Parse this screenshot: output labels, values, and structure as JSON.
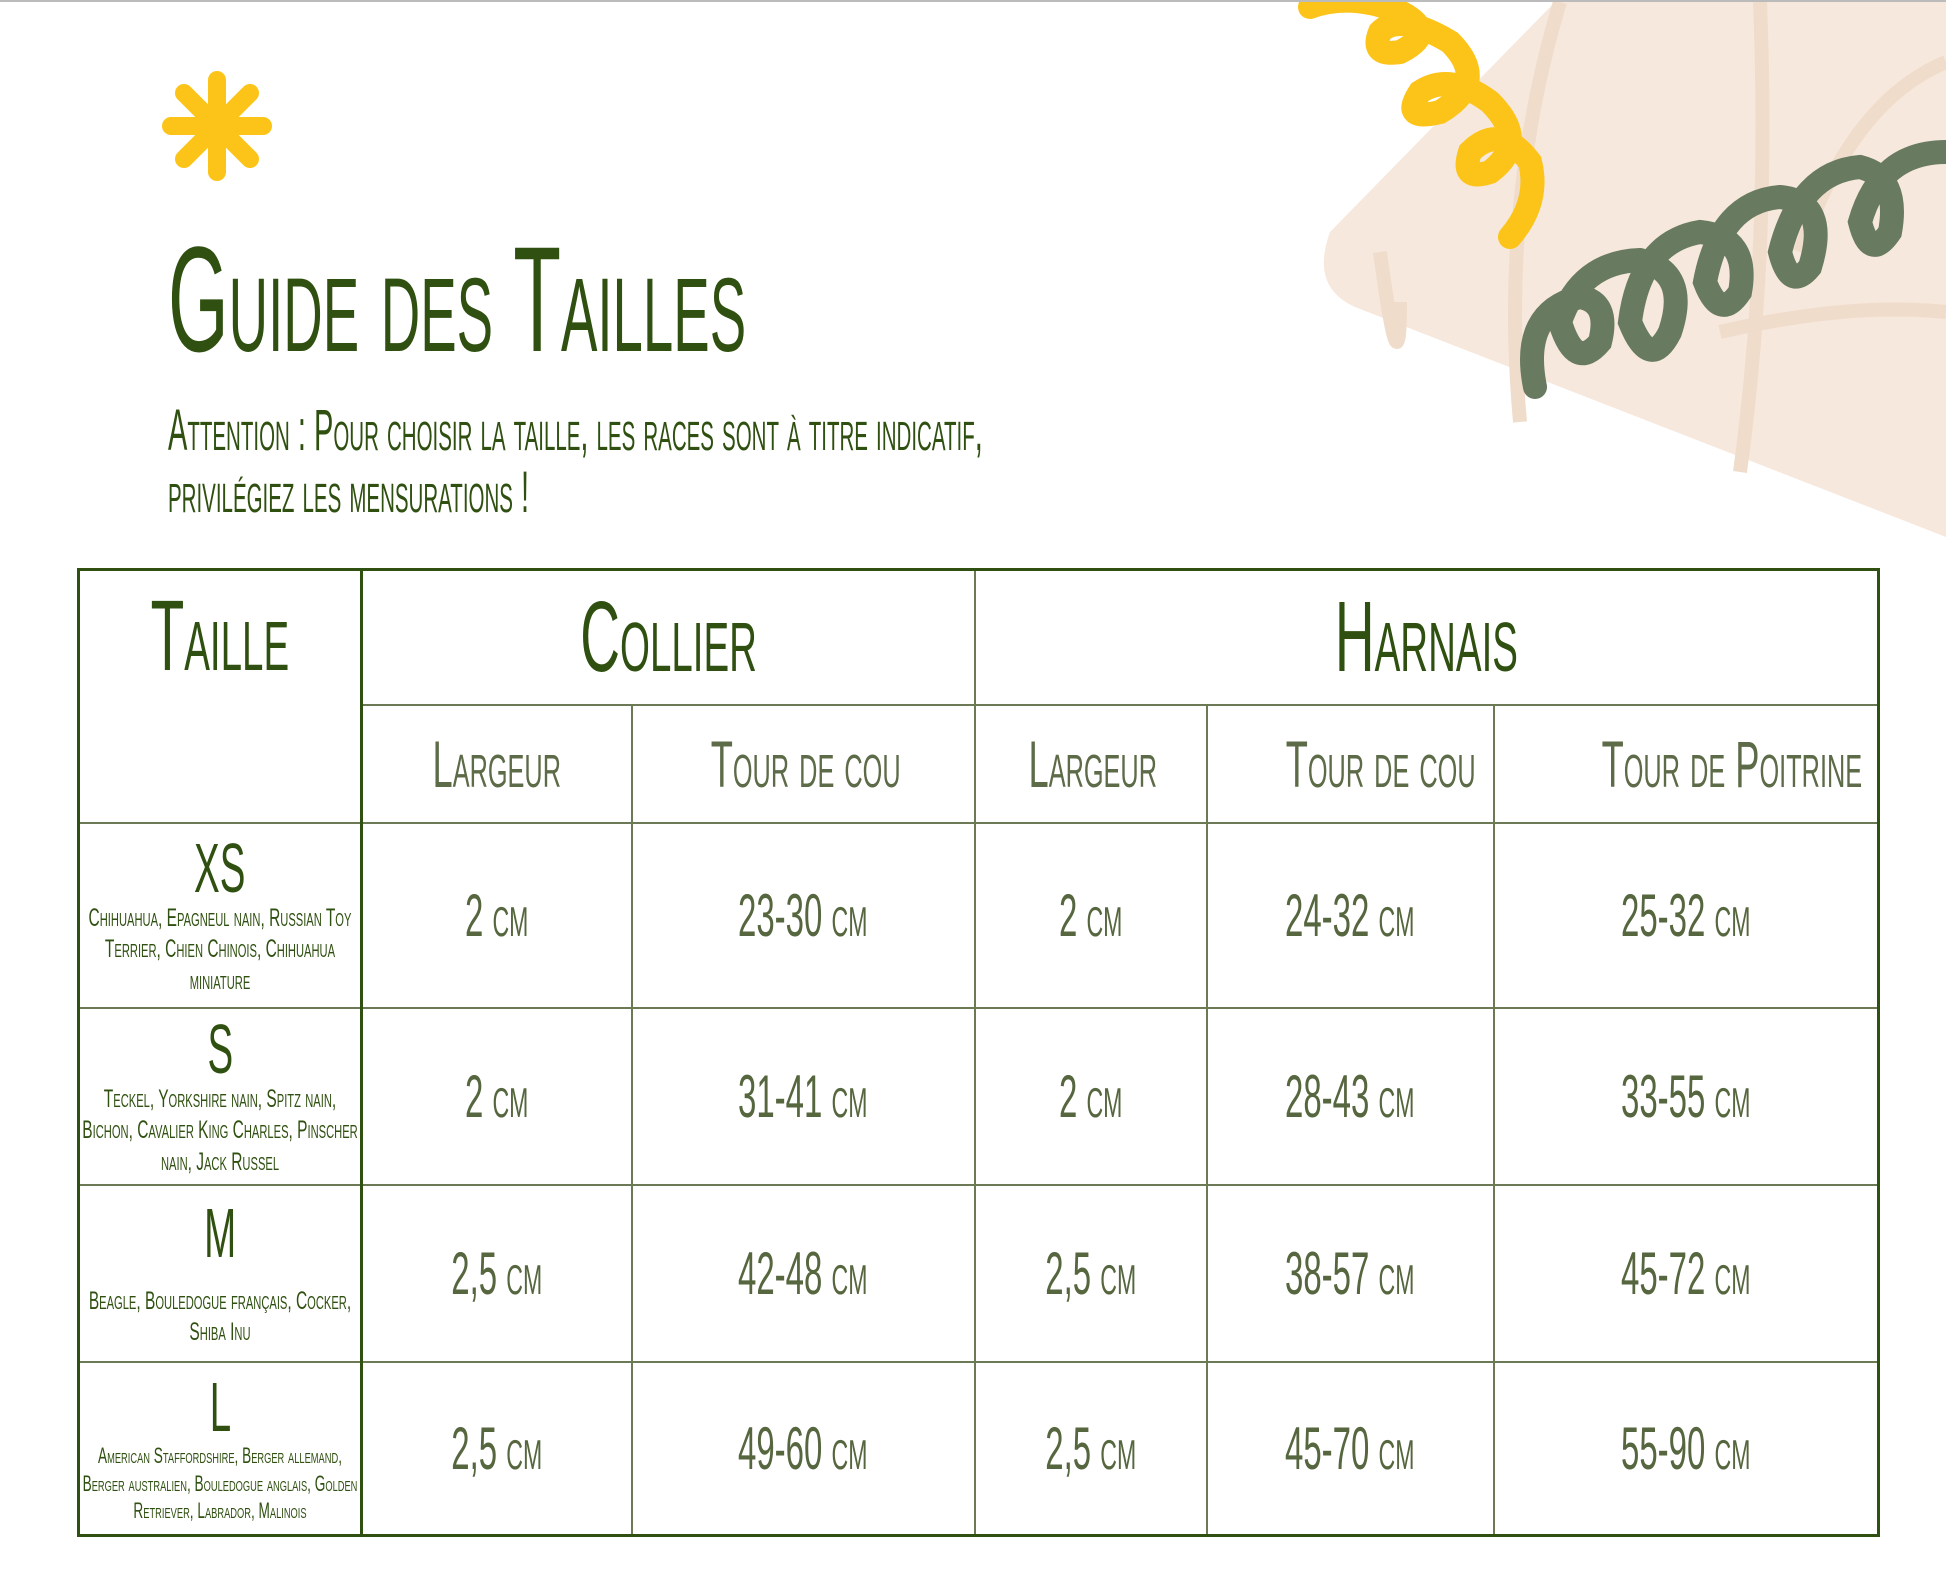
{
  "title": "Guide des Tailles",
  "subtitle_lines": [
    "Attention : Pour choisir la taille, les races sont à titre indicatif,",
    "privilégiez les mensurations !"
  ],
  "colors": {
    "dark_green": "#2f5010",
    "value_green": "#56663f",
    "yellow": "#fcc419",
    "sage": "#687a60",
    "beige": "#f6e8dc"
  },
  "table": {
    "taille_header": "Taille",
    "collier_header": "Collier",
    "harnais_header": "Harnais",
    "sub_headers": [
      "Largeur",
      "Tour de cou",
      "Largeur",
      "Tour de cou",
      "Tour de Poitrine"
    ],
    "rows": [
      {
        "size": "XS",
        "breeds": "Chihuahua, Epagneul nain, Russian Toy Terrier, Chien Chinois, Chihuahua miniature",
        "values": [
          "2 cm",
          "23-30 cm",
          "2 cm",
          "24-32 cm",
          "25-32 cm"
        ]
      },
      {
        "size": "S",
        "breeds": "Teckel, Yorkshire nain, Spitz nain, Bichon, Cavalier King Charles, Pinscher nain, Jack Russel",
        "values": [
          "2 cm",
          "31-41 cm",
          "2 cm",
          "28-43 cm",
          "33-55 cm"
        ]
      },
      {
        "size": "M",
        "breeds": "Beagle, Bouledogue français, Cocker, Shiba Inu",
        "values": [
          "2,5 cm",
          "42-48 cm",
          "2,5 cm",
          "38-57 cm",
          "45-72 cm"
        ]
      },
      {
        "size": "L",
        "breeds": "American Staffordshire, Berger allemand, Berger australien, Bouledogue anglais, Golden Retriever, Labrador, Malinois",
        "values": [
          "2,5 cm",
          "49-60 cm",
          "2,5 cm",
          "45-70 cm",
          "55-90 cm"
        ]
      }
    ]
  }
}
